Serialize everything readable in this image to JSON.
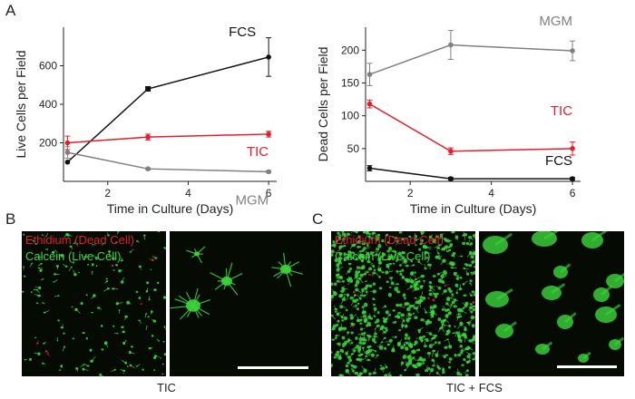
{
  "panels": {
    "a": "A",
    "b": "B",
    "c": "C"
  },
  "chart_data": [
    {
      "type": "line",
      "xlabel": "Time in Culture (Days)",
      "ylabel": "Live Cells per Field",
      "xlim": [
        0.9,
        6.2
      ],
      "ylim": [
        0,
        800
      ],
      "xticks": [
        2,
        4,
        6
      ],
      "yticks": [
        200,
        400,
        600
      ],
      "x": [
        1,
        3,
        6
      ],
      "series": [
        {
          "name": "FCS",
          "color": "#111111",
          "values": [
            100,
            480,
            645
          ],
          "errors": [
            0,
            10,
            100
          ]
        },
        {
          "name": "TIC",
          "color": "#e0202a",
          "values": [
            200,
            230,
            245
          ],
          "errors": [
            35,
            15,
            15
          ]
        },
        {
          "name": "MGM",
          "color": "#808080",
          "values": [
            150,
            65,
            50
          ],
          "errors": [
            30,
            5,
            5
          ]
        }
      ],
      "grid": false
    },
    {
      "type": "line",
      "xlabel": "Time in Culture (Days)",
      "ylabel": "Dead Cells per Field",
      "xlim": [
        0.9,
        6.2
      ],
      "ylim": [
        0,
        235
      ],
      "xticks": [
        2,
        4,
        6
      ],
      "yticks": [
        50,
        100,
        150,
        200
      ],
      "x": [
        1,
        3,
        6
      ],
      "series": [
        {
          "name": "MGM",
          "color": "#808080",
          "values": [
            163,
            208,
            199
          ],
          "errors": [
            17,
            22,
            15
          ]
        },
        {
          "name": "TIC",
          "color": "#e0202a",
          "values": [
            118,
            46,
            50
          ],
          "errors": [
            6,
            5,
            10
          ]
        },
        {
          "name": "FCS",
          "color": "#111111",
          "values": [
            20,
            4,
            4
          ],
          "errors": [
            4,
            2,
            2
          ]
        }
      ],
      "grid": false
    }
  ],
  "micrographs": {
    "label_dead": "Ethidium (Dead Cell)",
    "label_live": "Calcein (Live Cell)",
    "caption_b": "TIC",
    "caption_c": "TIC + FCS",
    "stain_red": "#e0202a",
    "stain_green": "#3cd63c"
  }
}
